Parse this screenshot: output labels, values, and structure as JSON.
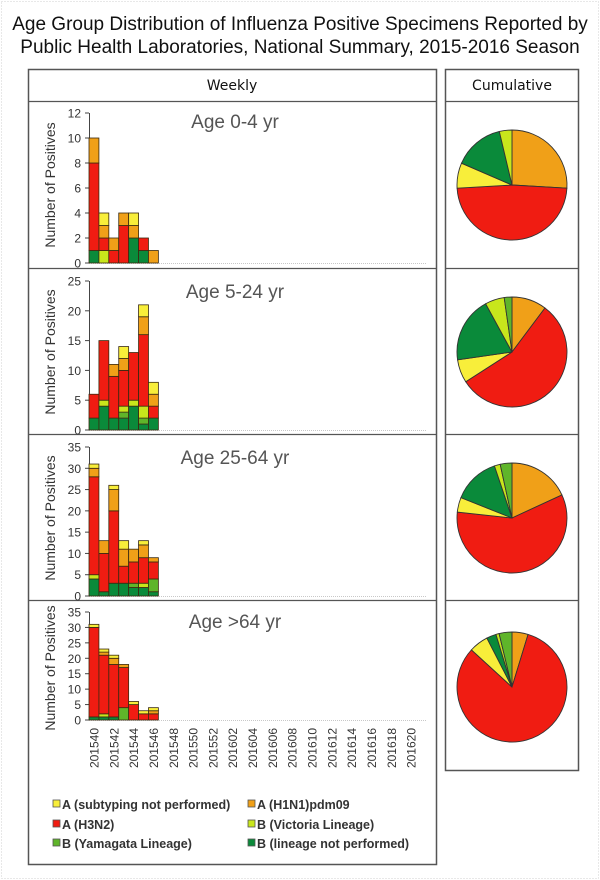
{
  "chart_data": {
    "type": "bar",
    "subtype": "stacked-bar-with-pie",
    "title_line1": "Age Group Distribution of Influenza Positive Specimens Reported by",
    "title_line2": "Public Health Laboratories, National Summary, 2015-2016 Season",
    "weekly_header": "Weekly",
    "cumulative_header": "Cumulative",
    "ylabel": "Number of Positives",
    "xlabel": "",
    "x_weeks": [
      "201540",
      "201541",
      "201542",
      "201543",
      "201544",
      "201545",
      "201546",
      "201547",
      "201548",
      "201549",
      "201550",
      "201551",
      "201552",
      "201601",
      "201602",
      "201603",
      "201604",
      "201605",
      "201606",
      "201607",
      "201608",
      "201609",
      "201610",
      "201611",
      "201612",
      "201613",
      "201614",
      "201615",
      "201616",
      "201617",
      "201618",
      "201619",
      "201620",
      "201621"
    ],
    "x_tick_labels": [
      "201540",
      "201542",
      "201544",
      "201546",
      "201548",
      "201550",
      "201552",
      "201602",
      "201604",
      "201606",
      "201608",
      "201610",
      "201612",
      "201614",
      "201616",
      "201618",
      "201620"
    ],
    "series_meta": [
      {
        "key": "b_lineage_not_performed",
        "name": "B (lineage not performed)",
        "color": "#0a8a3a"
      },
      {
        "key": "b_yamagata",
        "name": "B (Yamagata Lineage)",
        "color": "#5fb52a"
      },
      {
        "key": "b_victoria",
        "name": "B (Victoria Lineage)",
        "color": "#c8e61c"
      },
      {
        "key": "a_h3n2",
        "name": "A (H3N2)",
        "color": "#f01c12"
      },
      {
        "key": "a_h1n1pdm09",
        "name": "A (H1N1)pdm09",
        "color": "#f0a018"
      },
      {
        "key": "a_subtyping_not_performed",
        "name": "A (subtyping not performed)",
        "color": "#f8ee3a"
      }
    ],
    "legend": [
      {
        "key": "a_subtyping_not_performed",
        "label": "A (subtyping not performed)"
      },
      {
        "key": "a_h1n1pdm09",
        "label": "A (H1N1)pdm09"
      },
      {
        "key": "a_h3n2",
        "label": "A (H3N2)"
      },
      {
        "key": "b_victoria",
        "label": "B (Victoria Lineage)"
      },
      {
        "key": "b_yamagata",
        "label": "B (Yamagata Lineage)"
      },
      {
        "key": "b_lineage_not_performed",
        "label": "B (lineage not performed)"
      }
    ],
    "legend_position": "bottom",
    "pie_order": [
      "a_h1n1pdm09",
      "a_h3n2",
      "a_subtyping_not_performed",
      "b_lineage_not_performed",
      "b_victoria",
      "b_yamagata"
    ],
    "panels": [
      {
        "label": "Age 0-4 yr",
        "ylim": [
          0,
          12
        ],
        "yticks": [
          0,
          2,
          4,
          6,
          8,
          10,
          12
        ],
        "series": {
          "b_lineage_not_performed": [
            1,
            0,
            0,
            0,
            2,
            1,
            0
          ],
          "b_yamagata": [
            0,
            0,
            0,
            0,
            0,
            0,
            0
          ],
          "b_victoria": [
            0,
            1,
            0,
            0,
            0,
            0,
            0
          ],
          "a_h3n2": [
            7,
            1,
            1,
            3,
            0,
            1,
            0
          ],
          "a_h1n1pdm09": [
            2,
            1,
            1,
            1,
            1,
            0,
            1
          ],
          "a_subtyping_not_performed": [
            0,
            1,
            0,
            0,
            1,
            0,
            0
          ]
        },
        "cumulative": {
          "a_h1n1pdm09": 7,
          "a_h3n2": 13,
          "a_subtyping_not_performed": 2,
          "b_lineage_not_performed": 4,
          "b_victoria": 1,
          "b_yamagata": 0
        }
      },
      {
        "label": "Age 5-24 yr",
        "ylim": [
          0,
          25
        ],
        "yticks": [
          0,
          5,
          10,
          15,
          20,
          25
        ],
        "series": {
          "b_lineage_not_performed": [
            2,
            4,
            2,
            2,
            4,
            1,
            2
          ],
          "b_yamagata": [
            0,
            0,
            0,
            1,
            0,
            1,
            0
          ],
          "b_victoria": [
            0,
            1,
            0,
            1,
            1,
            2,
            0
          ],
          "a_h3n2": [
            4,
            10,
            7,
            6,
            8,
            12,
            2
          ],
          "a_h1n1pdm09": [
            0,
            0,
            2,
            2,
            0,
            3,
            2
          ],
          "a_subtyping_not_performed": [
            0,
            0,
            0,
            2,
            0,
            2,
            2
          ]
        },
        "cumulative": {
          "a_h1n1pdm09": 9,
          "a_h3n2": 49,
          "a_subtyping_not_performed": 6,
          "b_lineage_not_performed": 17,
          "b_victoria": 5,
          "b_yamagata": 2
        }
      },
      {
        "label": "Age 25-64 yr",
        "ylim": [
          0,
          35
        ],
        "yticks": [
          0,
          5,
          10,
          15,
          20,
          25,
          30,
          35
        ],
        "series": {
          "b_lineage_not_performed": [
            4,
            1,
            3,
            3,
            2,
            2,
            1
          ],
          "b_yamagata": [
            0,
            0,
            0,
            0,
            1,
            0,
            3
          ],
          "b_victoria": [
            1,
            0,
            0,
            0,
            0,
            1,
            0
          ],
          "a_h3n2": [
            23,
            9,
            17,
            4,
            5,
            6,
            4
          ],
          "a_h1n1pdm09": [
            2,
            3,
            5,
            4,
            3,
            3,
            1
          ],
          "a_subtyping_not_performed": [
            1,
            0,
            1,
            2,
            0,
            1,
            0
          ]
        },
        "cumulative": {
          "a_h1n1pdm09": 21,
          "a_h3n2": 68,
          "a_subtyping_not_performed": 5,
          "b_lineage_not_performed": 16,
          "b_victoria": 2,
          "b_yamagata": 4
        }
      },
      {
        "label": "Age >64 yr",
        "ylim": [
          0,
          35
        ],
        "yticks": [
          0,
          5,
          10,
          15,
          20,
          25,
          30,
          35
        ],
        "series": {
          "b_lineage_not_performed": [
            1,
            1,
            1,
            0,
            0,
            0,
            0
          ],
          "b_yamagata": [
            0,
            0,
            0,
            4,
            0,
            0,
            0
          ],
          "b_victoria": [
            0,
            1,
            0,
            0,
            0,
            0,
            0
          ],
          "a_h3n2": [
            29,
            19,
            17,
            13,
            5,
            2,
            2
          ],
          "a_h1n1pdm09": [
            0,
            1,
            2,
            1,
            0,
            0,
            1
          ],
          "a_subtyping_not_performed": [
            1,
            1,
            1,
            0,
            1,
            1,
            1
          ]
        },
        "cumulative": {
          "a_h1n1pdm09": 5,
          "a_h3n2": 87,
          "a_subtyping_not_performed": 6,
          "b_lineage_not_performed": 3,
          "b_victoria": 1,
          "b_yamagata": 4
        }
      }
    ]
  }
}
